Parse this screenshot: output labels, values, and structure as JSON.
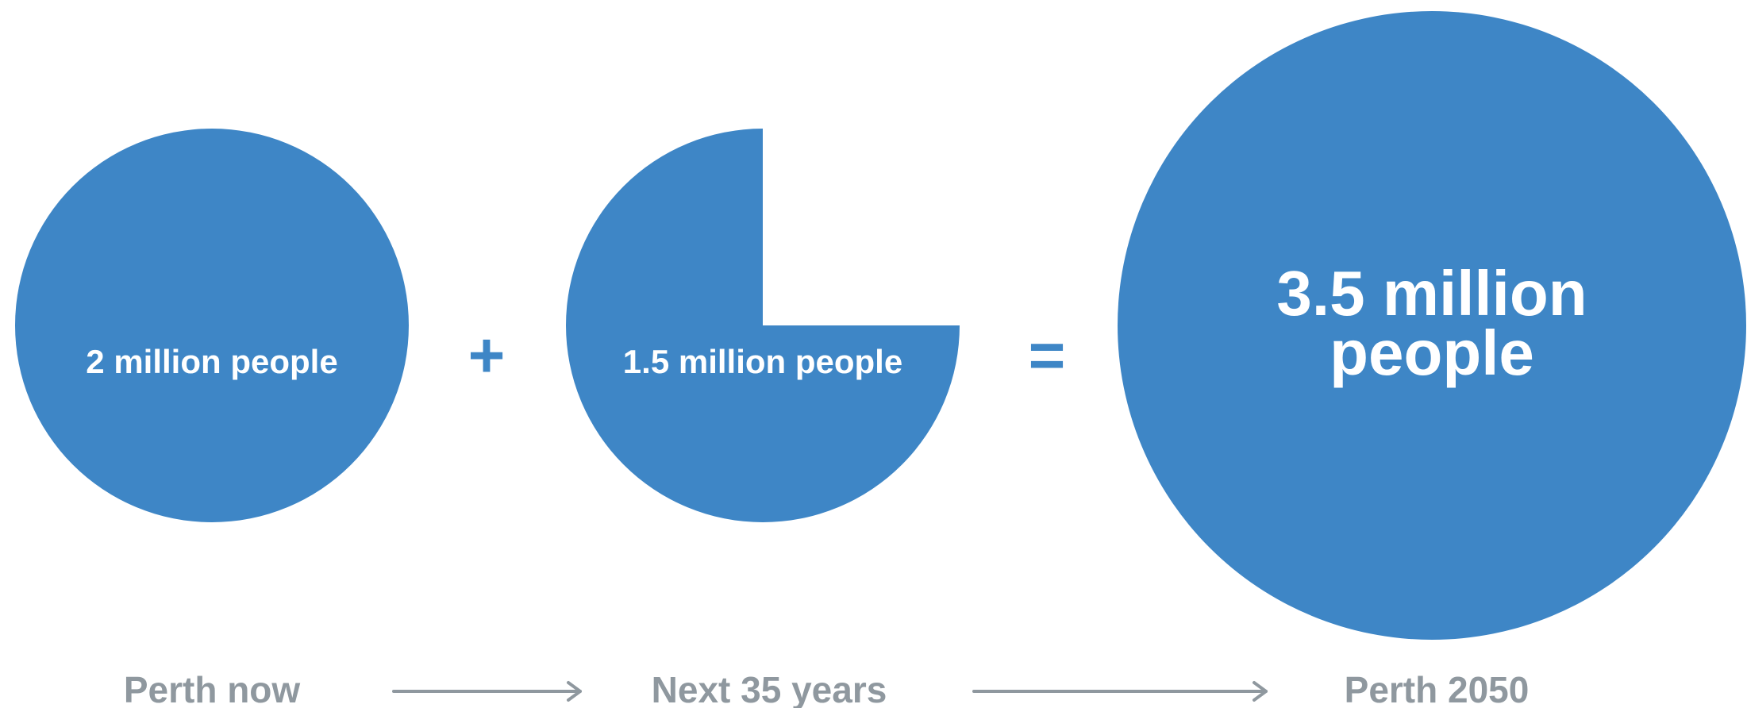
{
  "colors": {
    "shape_fill": "#3e86c6",
    "shape_text": "#ffffff",
    "label_text": "#8f989f",
    "background": "#ffffff"
  },
  "population": {
    "now": {
      "value_millions": 2,
      "text": "2 million people",
      "label": "Perth now"
    },
    "growth": {
      "value_millions": 1.5,
      "text": "1.5 million people",
      "label": "Next 35 years"
    },
    "future": {
      "value_millions": 3.5,
      "text_line1": "3.5 million",
      "text_line2": "people",
      "label": "Perth 2050"
    }
  },
  "operators": {
    "plus": "+",
    "equals": "="
  }
}
